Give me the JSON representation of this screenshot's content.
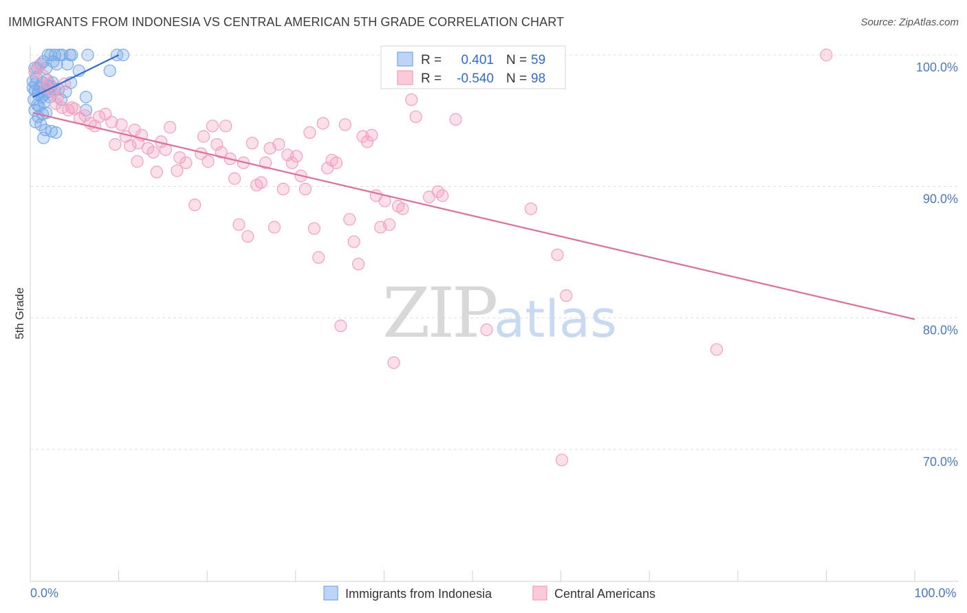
{
  "title": "IMMIGRANTS FROM INDONESIA VS CENTRAL AMERICAN 5TH GRADE CORRELATION CHART",
  "source": "Source: ZipAtlas.com",
  "watermark": {
    "zip": "ZIP",
    "atlas": "atlas"
  },
  "colors": {
    "blue": "#7aaae8",
    "blue_line": "#2f6bd1",
    "pink": "#f4a0bd",
    "pink_line": "#e06c97",
    "grid": "#dddddd",
    "tick_label": "#4a78c2"
  },
  "legend": {
    "r_label": "R =",
    "n_label": "N =",
    "rows": [
      {
        "series": "blue",
        "r": "0.401",
        "n": "59"
      },
      {
        "series": "pink",
        "r": "-0.540",
        "n": "98"
      }
    ]
  },
  "chart_data": {
    "type": "scatter",
    "xlabel": "",
    "ylabel": "5th Grade",
    "xlim": [
      0,
      100
    ],
    "ylim": [
      60,
      100
    ],
    "x_ticks": [
      {
        "value": 0,
        "label": "0.0%"
      },
      {
        "value": 100,
        "label": "100.0%"
      }
    ],
    "y_ticks": [
      {
        "value": 100,
        "label": "100.0%"
      },
      {
        "value": 90,
        "label": "90.0%"
      },
      {
        "value": 80,
        "label": "80.0%"
      },
      {
        "value": 70,
        "label": "70.0%"
      }
    ],
    "series": [
      {
        "name": "Immigrants from Indonesia",
        "color": "#7aaae8",
        "trend": {
          "x": [
            0.3,
            10
          ],
          "y": [
            96.8,
            100
          ]
        },
        "points": [
          [
            0.5,
            99
          ],
          [
            0.8,
            99
          ],
          [
            1.2,
            99.3
          ],
          [
            1.5,
            99.5
          ],
          [
            1.8,
            99
          ],
          [
            2,
            100
          ],
          [
            2.3,
            100
          ],
          [
            2.6,
            99.5
          ],
          [
            2.8,
            100
          ],
          [
            3,
            99.3
          ],
          [
            3.3,
            100
          ],
          [
            3.6,
            100
          ],
          [
            4.2,
            99.3
          ],
          [
            4.5,
            100
          ],
          [
            4.7,
            100
          ],
          [
            5.5,
            98.8
          ],
          [
            6.5,
            100
          ],
          [
            9.8,
            100
          ],
          [
            10.5,
            100
          ],
          [
            9,
            98.8
          ],
          [
            0.3,
            97.5
          ],
          [
            0.6,
            97.8
          ],
          [
            0.9,
            97.2
          ],
          [
            1.1,
            97.6
          ],
          [
            1.4,
            97.9
          ],
          [
            1.7,
            97.4
          ],
          [
            2.1,
            97.2
          ],
          [
            2.4,
            97.6
          ],
          [
            2.7,
            97.4
          ],
          [
            0.4,
            96.6
          ],
          [
            0.8,
            96.2
          ],
          [
            1.3,
            96.8
          ],
          [
            1.6,
            96.4
          ],
          [
            2.2,
            96.8
          ],
          [
            3.5,
            96.6
          ],
          [
            0.7,
            98.3
          ],
          [
            1.9,
            98.1
          ],
          [
            2.5,
            97.9
          ],
          [
            4.6,
            97.9
          ],
          [
            6.3,
            96.8
          ],
          [
            0.5,
            95.8
          ],
          [
            1,
            96.1
          ],
          [
            1.4,
            95.5
          ],
          [
            0.9,
            95.3
          ],
          [
            1.8,
            95.6
          ],
          [
            0.6,
            94.9
          ],
          [
            1.2,
            94.7
          ],
          [
            1.7,
            94.3
          ],
          [
            2.4,
            94.2
          ],
          [
            1.5,
            93.7
          ],
          [
            2.9,
            94.1
          ],
          [
            6.3,
            95.8
          ],
          [
            0.9,
            97
          ],
          [
            1.6,
            97
          ],
          [
            3.2,
            97.4
          ],
          [
            0.5,
            97.3
          ],
          [
            2,
            97.7
          ],
          [
            4,
            97.2
          ],
          [
            0.3,
            98
          ]
        ]
      },
      {
        "name": "Central Americans",
        "color": "#f4a0bd",
        "trend": {
          "x": [
            0.3,
            100
          ],
          "y": [
            95.6,
            79.9
          ]
        },
        "points": [
          [
            0.5,
            98.7
          ],
          [
            1,
            99.2
          ],
          [
            1.5,
            98.4
          ],
          [
            2.2,
            97.8
          ],
          [
            2.6,
            97.2
          ],
          [
            3.1,
            96.8
          ],
          [
            3.6,
            96
          ],
          [
            4.3,
            95.8
          ],
          [
            5,
            95.9
          ],
          [
            5.6,
            95.2
          ],
          [
            6.2,
            95.4
          ],
          [
            6.8,
            94.8
          ],
          [
            7.3,
            94.6
          ],
          [
            7.8,
            95.3
          ],
          [
            8.5,
            95.5
          ],
          [
            9.2,
            94.9
          ],
          [
            9.6,
            93.2
          ],
          [
            10.3,
            94.7
          ],
          [
            10.8,
            93.8
          ],
          [
            11.3,
            93.1
          ],
          [
            11.8,
            94.3
          ],
          [
            12.2,
            93.3
          ],
          [
            12.6,
            93.9
          ],
          [
            13.3,
            92.9
          ],
          [
            13.9,
            92.6
          ],
          [
            14.3,
            91.1
          ],
          [
            14.8,
            93.4
          ],
          [
            15.3,
            92.8
          ],
          [
            15.8,
            94.5
          ],
          [
            16.6,
            91.2
          ],
          [
            16.9,
            92.2
          ],
          [
            17.6,
            91.8
          ],
          [
            18.6,
            88.6
          ],
          [
            19.3,
            92.5
          ],
          [
            19.6,
            93.8
          ],
          [
            20.1,
            91.9
          ],
          [
            20.6,
            94.6
          ],
          [
            21.1,
            93.2
          ],
          [
            21.6,
            92.6
          ],
          [
            22.1,
            94.6
          ],
          [
            22.6,
            92.1
          ],
          [
            23.1,
            90.6
          ],
          [
            23.6,
            87.1
          ],
          [
            24.1,
            91.8
          ],
          [
            24.6,
            86.2
          ],
          [
            25.1,
            93.3
          ],
          [
            25.6,
            90.1
          ],
          [
            26.1,
            90.3
          ],
          [
            26.6,
            91.8
          ],
          [
            27.1,
            92.9
          ],
          [
            27.6,
            86.9
          ],
          [
            28.1,
            93.2
          ],
          [
            28.6,
            89.8
          ],
          [
            29.1,
            92.4
          ],
          [
            29.6,
            91.8
          ],
          [
            30.1,
            92.3
          ],
          [
            30.6,
            90.8
          ],
          [
            31.1,
            89.8
          ],
          [
            31.6,
            94.1
          ],
          [
            32.1,
            86.8
          ],
          [
            32.6,
            84.6
          ],
          [
            33.1,
            94.8
          ],
          [
            33.6,
            91.4
          ],
          [
            34.1,
            92
          ],
          [
            34.6,
            91.8
          ],
          [
            35.1,
            79.4
          ],
          [
            35.6,
            94.7
          ],
          [
            36.1,
            87.5
          ],
          [
            36.6,
            85.8
          ],
          [
            37.1,
            84.1
          ],
          [
            37.6,
            93.8
          ],
          [
            38.1,
            93.4
          ],
          [
            38.6,
            93.9
          ],
          [
            39.1,
            89.3
          ],
          [
            39.6,
            86.9
          ],
          [
            40.1,
            88.9
          ],
          [
            40.6,
            87.1
          ],
          [
            41.1,
            76.6
          ],
          [
            41.6,
            88.5
          ],
          [
            42.1,
            88.3
          ],
          [
            43.1,
            96.6
          ],
          [
            43.6,
            95.3
          ],
          [
            45.1,
            89.2
          ],
          [
            46.1,
            89.6
          ],
          [
            46.6,
            89.3
          ],
          [
            48.1,
            95.1
          ],
          [
            51.6,
            79.1
          ],
          [
            56.6,
            88.3
          ],
          [
            59.6,
            84.8
          ],
          [
            60.6,
            81.7
          ],
          [
            60.1,
            69.2
          ],
          [
            77.6,
            77.6
          ],
          [
            90,
            100
          ],
          [
            3.9,
            97.8
          ],
          [
            1.8,
            97.5
          ],
          [
            2.9,
            96.3
          ],
          [
            4.7,
            96
          ],
          [
            12.1,
            91.9
          ]
        ]
      }
    ],
    "legend_position": "top-center",
    "grid": true
  }
}
